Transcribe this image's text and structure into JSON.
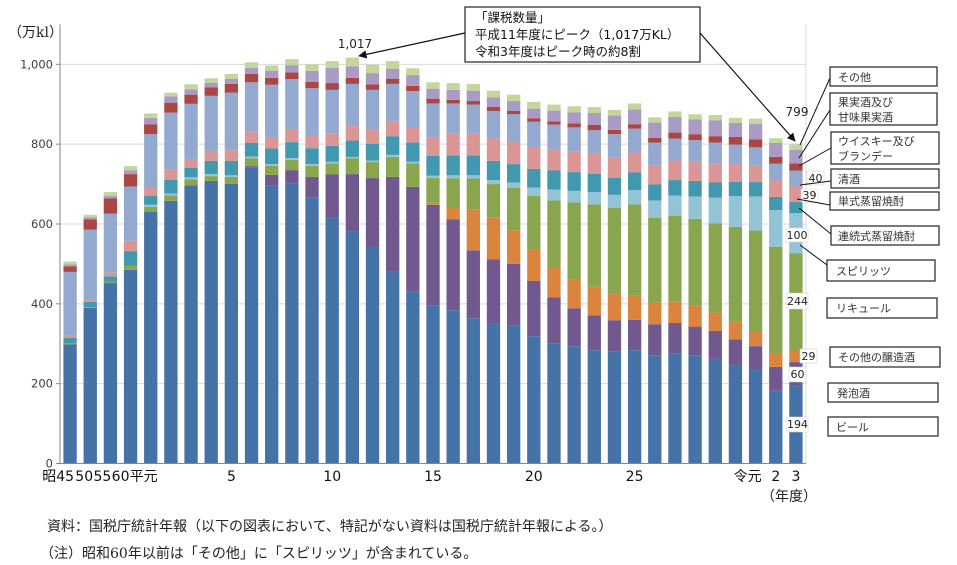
{
  "chart_data": {
    "type": "bar",
    "stacked": true,
    "title": "",
    "ylabel": "（万kl）",
    "xlabel": "（年度）",
    "ylim": [
      0,
      1100
    ],
    "yticks": [
      0,
      200,
      400,
      600,
      800,
      1000
    ],
    "ytick_labels": [
      "0",
      "200",
      "400",
      "600",
      "800",
      "1,000"
    ],
    "grid": true,
    "legend_placement": "right",
    "categories": [
      "昭45",
      "昭50",
      "昭55",
      "昭60",
      "平元",
      "平2",
      "平3",
      "平4",
      "平5",
      "平6",
      "平7",
      "平8",
      "平9",
      "平10",
      "平11",
      "平12",
      "平13",
      "平14",
      "平15",
      "平16",
      "平17",
      "平18",
      "平19",
      "平20",
      "平21",
      "平22",
      "平23",
      "平24",
      "平25",
      "平26",
      "平27",
      "平28",
      "平29",
      "平30",
      "令元",
      "令2",
      "令3"
    ],
    "xtick_labels": [
      {
        "category": "昭45",
        "label": "昭45"
      },
      {
        "category": "昭50",
        "label": "50"
      },
      {
        "category": "昭55",
        "label": "55"
      },
      {
        "category": "昭60",
        "label": "60"
      },
      {
        "category": "平元",
        "label": "平元"
      },
      {
        "category": "平5",
        "label": "5"
      },
      {
        "category": "平10",
        "label": "10"
      },
      {
        "category": "平15",
        "label": "15"
      },
      {
        "category": "平20",
        "label": "20"
      },
      {
        "category": "平25",
        "label": "25"
      },
      {
        "category": "令元",
        "label": "令元"
      },
      {
        "category": "令2",
        "label": "2"
      },
      {
        "category": "令3",
        "label": "3"
      }
    ],
    "series": [
      {
        "name": "ビール",
        "legend_lines": [
          "ビール"
        ],
        "color": "#4572A7",
        "values": [
          298,
          390,
          452,
          485,
          631,
          658,
          697,
          708,
          701,
          741,
          696,
          701,
          667,
          616,
          581,
          540,
          480,
          430,
          395,
          384,
          364,
          352,
          345,
          319,
          301,
          294,
          284,
          280,
          284,
          271,
          276,
          271,
          262,
          247,
          234,
          182,
          194
        ]
      },
      {
        "name": "発泡酒",
        "legend_lines": [
          "発泡酒"
        ],
        "color": "#71588F",
        "values": [
          0,
          0,
          0,
          0,
          0,
          0,
          0,
          0,
          0,
          4,
          27,
          34,
          51,
          108,
          144,
          175,
          238,
          263,
          253,
          228,
          170,
          159,
          155,
          139,
          115,
          95,
          87,
          79,
          76,
          78,
          76,
          72,
          70,
          64,
          60,
          60,
          60
        ]
      },
      {
        "name": "その他の醸造酒",
        "legend_lines": [
          "その他の醸造酒"
        ],
        "color": "#DB843D",
        "values": [
          0,
          0,
          0,
          0,
          0,
          0,
          0,
          0,
          0,
          0,
          0,
          0,
          0,
          0,
          0,
          0,
          0,
          0,
          5,
          28,
          103,
          106,
          84,
          78,
          75,
          73,
          72,
          67,
          61,
          54,
          53,
          52,
          46,
          44,
          38,
          35,
          29
        ]
      },
      {
        "name": "リキュール",
        "legend_lines": [
          "リキュール"
        ],
        "color": "#89A54E",
        "values": [
          3,
          2,
          3,
          10,
          12,
          14,
          15,
          12,
          17,
          20,
          23,
          26,
          28,
          28,
          40,
          40,
          50,
          59,
          62,
          74,
          77,
          83,
          107,
          134,
          168,
          192,
          206,
          214,
          228,
          212,
          216,
          218,
          224,
          238,
          252,
          266,
          244
        ]
      },
      {
        "name": "スピリッツ",
        "legend_lines": [
          "スピリッツ"
        ],
        "color": "#93C4D6",
        "values": [
          0,
          0,
          0,
          0,
          5,
          4,
          5,
          5,
          4,
          4,
          4,
          4,
          4,
          4,
          3,
          4,
          5,
          4,
          6,
          8,
          8,
          10,
          13,
          21,
          27,
          29,
          31,
          33,
          36,
          44,
          50,
          56,
          64,
          77,
          85,
          92,
          100
        ]
      },
      {
        "name": "連続式蒸留焼酎",
        "legend_lines": [
          "連続式蒸留焼酎"
        ],
        "color": "#4198AF",
        "values": [
          14,
          13,
          14,
          37,
          22,
          35,
          24,
          33,
          36,
          34,
          39,
          40,
          40,
          40,
          41,
          42,
          47,
          48,
          50,
          50,
          50,
          48,
          46,
          47,
          48,
          47,
          46,
          43,
          44,
          40,
          39,
          39,
          38,
          36,
          36,
          33,
          28
        ]
      },
      {
        "name": "単式蒸留焼酎",
        "legend_lines": [
          "単式蒸留焼酎"
        ],
        "color": "#D99694",
        "values": [
          6,
          7,
          9,
          26,
          20,
          26,
          22,
          25,
          27,
          28,
          28,
          33,
          33,
          31,
          36,
          36,
          36,
          39,
          46,
          54,
          54,
          56,
          58,
          55,
          54,
          51,
          50,
          51,
          50,
          48,
          49,
          48,
          48,
          44,
          41,
          41,
          39
        ]
      },
      {
        "name": "清酒",
        "legend_lines": [
          "清酒"
        ],
        "color": "#93A9CF",
        "values": [
          159,
          174,
          148,
          136,
          135,
          142,
          138,
          138,
          144,
          124,
          132,
          125,
          117,
          109,
          106,
          99,
          95,
          90,
          85,
          76,
          73,
          69,
          67,
          63,
          61,
          61,
          59,
          58,
          60,
          57,
          55,
          54,
          52,
          49,
          46,
          42,
          40
        ]
      },
      {
        "name": "ウイスキー及びブランデー",
        "legend_lines": [
          "ウイスキー及び",
          "ブランデー"
        ],
        "color": "#AA4643",
        "values": [
          14,
          26,
          38,
          31,
          25,
          25,
          23,
          21,
          22,
          21,
          17,
          17,
          16,
          17,
          15,
          14,
          13,
          13,
          12,
          9,
          9,
          10,
          8,
          9,
          8,
          10,
          13,
          11,
          11,
          12,
          15,
          15,
          16,
          19,
          20,
          17,
          18
        ]
      },
      {
        "name": "果実酒及び甘味果実酒",
        "legend_lines": [
          "果実酒及び",
          "甘味果実酒"
        ],
        "color": "#A99BC4",
        "values": [
          5,
          5,
          6,
          9,
          16,
          16,
          13,
          12,
          13,
          15,
          18,
          18,
          28,
          38,
          29,
          28,
          25,
          27,
          25,
          25,
          26,
          24,
          25,
          24,
          27,
          28,
          30,
          36,
          37,
          38,
          39,
          37,
          40,
          35,
          39,
          35,
          34
        ]
      },
      {
        "name": "その他",
        "legend_lines": [
          "その他"
        ],
        "color": "#C3D69B",
        "values": [
          7,
          6,
          10,
          11,
          11,
          9,
          13,
          11,
          12,
          14,
          13,
          15,
          16,
          17,
          22,
          21,
          19,
          17,
          16,
          17,
          17,
          17,
          16,
          17,
          15,
          15,
          15,
          14,
          15,
          13,
          14,
          13,
          13,
          13,
          13,
          12,
          13
        ]
      }
    ],
    "data_labels": [
      {
        "category": "令3",
        "series": "清酒",
        "text": "40"
      },
      {
        "category": "令3",
        "series": "単式蒸留焼酎",
        "text": "39"
      },
      {
        "category": "令3",
        "series": "スピリッツ",
        "text": "100"
      },
      {
        "category": "令3",
        "series": "リキュール",
        "text": "244"
      },
      {
        "category": "令3",
        "series": "その他の醸造酒",
        "text": "29"
      },
      {
        "category": "令3",
        "series": "発泡酒",
        "text": "60"
      },
      {
        "category": "令3",
        "series": "ビール",
        "text": "194"
      }
    ],
    "total_labels": [
      {
        "category": "令3",
        "value": 799,
        "text": "799"
      }
    ],
    "peak_annotation": {
      "category": "平11",
      "value": 1017,
      "text": "1,017"
    }
  },
  "callout": {
    "lines": [
      "「課税数量」",
      "平成11年度にピーク（1,017万KL）",
      "令和3年度はピーク時の約8割"
    ]
  },
  "notes": {
    "source": "資料：国税庁統計年報（以下の図表において、特記がない資料は国税庁統計年報による。）",
    "note": "（注）昭和60年以前は「その他」に「スピリッツ」が含まれている。"
  }
}
